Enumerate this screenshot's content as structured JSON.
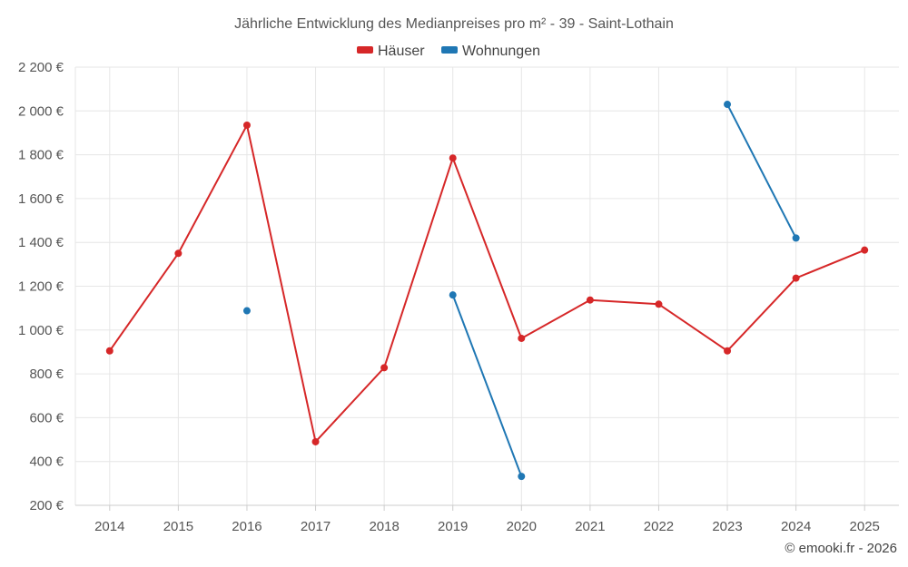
{
  "chart_data": {
    "type": "line",
    "title": "Jährliche Entwicklung des Medianpreises pro m² - 39 - Saint-Lothain",
    "categories": [
      "2014",
      "2015",
      "2016",
      "2017",
      "2018",
      "2019",
      "2020",
      "2021",
      "2022",
      "2023",
      "2024",
      "2025"
    ],
    "series": [
      {
        "name": "Häuser",
        "color": "#d62728",
        "values": [
          905,
          1350,
          1935,
          490,
          828,
          1785,
          962,
          1137,
          1118,
          905,
          1237,
          1365
        ]
      },
      {
        "name": "Wohnungen",
        "color": "#1f77b4",
        "values": [
          null,
          null,
          1088,
          null,
          null,
          1160,
          332,
          null,
          null,
          2030,
          1420,
          null
        ]
      }
    ],
    "ylim": [
      200,
      2200
    ],
    "yticks": [
      200,
      400,
      600,
      800,
      1000,
      1200,
      1400,
      1600,
      1800,
      2000,
      2200
    ],
    "ytick_labels": [
      "200 €",
      "400 €",
      "600 €",
      "800 €",
      "1 000 €",
      "1 200 €",
      "1 400 €",
      "1 600 €",
      "1 800 €",
      "2 000 €",
      "2 200 €"
    ],
    "xlabel": "",
    "ylabel": "",
    "grid": true,
    "legend_position": "top-center"
  },
  "credit": "© emooki.fr - 2026",
  "colors": {
    "grid": "#e6e6e6",
    "axis": "#cccccc"
  }
}
